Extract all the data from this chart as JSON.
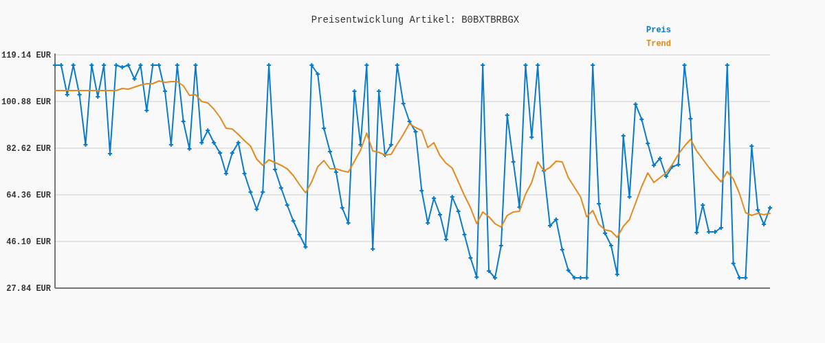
{
  "chart_data": {
    "type": "line",
    "title": "Preisentwicklung Artikel: B0BXTBRBGX",
    "categories": [
      null,
      null,
      null,
      null,
      null,
      null,
      null,
      null,
      null,
      null,
      null,
      null,
      null,
      null,
      null,
      null,
      null,
      null,
      null,
      null,
      null,
      null,
      null,
      null,
      null,
      null,
      null,
      null,
      null,
      null,
      null,
      null,
      null,
      null,
      null,
      null,
      null,
      null,
      null,
      null,
      null,
      null,
      null,
      null,
      null,
      null,
      null,
      null,
      null,
      null,
      null,
      null,
      null,
      null,
      null,
      null,
      null,
      null,
      null,
      null,
      null,
      null,
      null,
      null,
      null,
      null,
      null,
      null,
      null,
      null,
      null,
      null,
      null,
      null,
      null,
      null,
      null,
      null,
      null,
      null,
      null,
      null,
      null,
      null,
      null,
      null,
      null,
      null,
      null,
      null,
      null,
      null,
      null,
      null,
      null,
      null,
      null,
      null,
      null,
      null,
      null,
      null,
      null,
      null,
      null,
      null,
      null,
      null,
      null,
      null,
      null,
      null,
      null,
      null,
      null,
      null,
      null,
      null
    ],
    "series": [
      {
        "name": "Preis",
        "color": "#0a7bc8",
        "marker": "cross",
        "values": [
          115.1,
          115.1,
          103.57,
          115.1,
          103.57,
          83.96,
          115.1,
          102.76,
          115.1,
          80.47,
          115.1,
          114.31,
          115.1,
          109.74,
          115.1,
          97.39,
          115.1,
          115.1,
          104.91,
          83.96,
          115.1,
          93.09,
          82.35,
          115.1,
          84.77,
          89.6,
          84.77,
          80.74,
          72.68,
          80.74,
          84.77,
          72.68,
          65.43,
          58.72,
          65.43,
          115.1,
          74.3,
          67.04,
          60.33,
          54.15,
          48.78,
          43.95,
          115.1,
          111.63,
          90.41,
          81.28,
          73.22,
          59.26,
          53.35,
          104.91,
          83.96,
          115.1,
          43.15,
          104.91,
          79.93,
          83.96,
          115.1,
          100.07,
          93.09,
          89.06,
          65.97,
          53.35,
          63.02,
          56.57,
          46.91,
          63.55,
          57.92,
          48.78,
          39.66,
          32.14,
          115.1,
          34.55,
          31.87,
          44.49,
          95.51,
          77.25,
          59.53,
          115.1,
          86.92,
          115.1,
          73.76,
          52.27,
          54.69,
          42.88,
          34.82,
          31.87,
          31.87,
          31.87,
          115.1,
          60.87,
          49.32,
          44.49,
          33.21,
          87.45,
          63.55,
          99.81,
          93.9,
          84.5,
          75.91,
          78.59,
          71.61,
          75.37,
          76.18,
          115.1,
          94.17,
          49.59,
          60.33,
          49.86,
          49.86,
          51.47,
          115.1,
          37.51,
          31.87,
          31.87,
          83.43,
          58.45,
          52.81,
          59.26
        ]
      },
      {
        "name": "Trend",
        "color": "#e38a1e",
        "marker": "none",
        "values": [
          105.18,
          105.18,
          105.18,
          105.18,
          105.18,
          105.18,
          105.18,
          105.18,
          105.18,
          105.18,
          105.18,
          105.98,
          105.71,
          106.52,
          107.33,
          107.86,
          107.86,
          108.94,
          108.4,
          108.67,
          108.67,
          107.06,
          103.3,
          103.57,
          100.88,
          100.34,
          97.93,
          94.7,
          90.41,
          90.14,
          87.99,
          85.57,
          83.43,
          78.32,
          75.91,
          78.06,
          76.98,
          75.91,
          74.56,
          71.88,
          68.39,
          65.16,
          69.46,
          75.37,
          77.79,
          74.56,
          74.56,
          73.76,
          73.22,
          77.52,
          81.82,
          88.53,
          81.55,
          81.01,
          79.93,
          80.2,
          84.23,
          87.99,
          92.29,
          90.68,
          89.6,
          82.89,
          84.77,
          79.67,
          76.71,
          74.83,
          69.46,
          64.09,
          59.26,
          53.08,
          57.65,
          55.77,
          53.08,
          51.74,
          56.3,
          57.65,
          57.92,
          64.63,
          69.19,
          77.25,
          73.76,
          75.1,
          77.52,
          77.25,
          71.07,
          67.31,
          63.55,
          55.77,
          58.18,
          52.81,
          50.66,
          50.13,
          47.71,
          52.01,
          54.69,
          61.14,
          67.58,
          72.95,
          69.19,
          71.07,
          72.95,
          76.18,
          80.2,
          83.43,
          86.11,
          81.55,
          78.32,
          75.1,
          72.15,
          69.46,
          73.49,
          70.54,
          64.9,
          57.38,
          56.3,
          57.11,
          56.57,
          57.11
        ]
      }
    ],
    "ylim": [
      27.84,
      119.14
    ],
    "yticks": [
      {
        "value": 27.84,
        "label": "27.84 EUR"
      },
      {
        "value": 46.1,
        "label": "46.10 EUR"
      },
      {
        "value": 64.36,
        "label": "64.36 EUR"
      },
      {
        "value": 82.62,
        "label": "82.62 EUR"
      },
      {
        "value": 100.88,
        "label": "100.88 EUR"
      },
      {
        "value": 119.14,
        "label": "119.14 EUR"
      }
    ],
    "grid": "y",
    "legend": "top right"
  }
}
